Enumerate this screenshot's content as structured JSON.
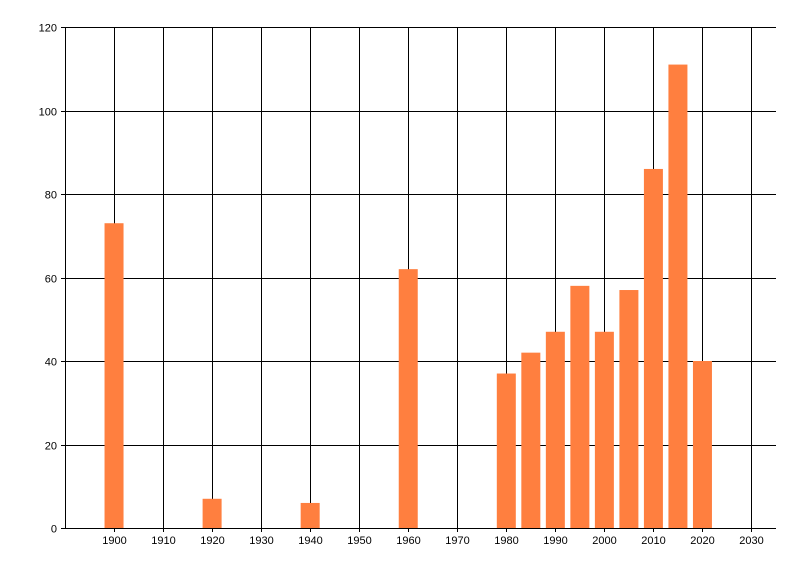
{
  "chart_data": {
    "type": "bar",
    "title": "",
    "xlabel": "",
    "ylabel": "",
    "x": [
      1900,
      1920,
      1940,
      1960,
      1980,
      1985,
      1990,
      1995,
      2000,
      2005,
      2010,
      2015,
      2020
    ],
    "values": [
      73,
      7,
      6,
      62,
      37,
      42,
      47,
      58,
      47,
      57,
      86,
      111,
      40
    ],
    "xlim": [
      1890,
      2035
    ],
    "ylim": [
      0,
      120
    ],
    "x_ticks": [
      1900,
      1910,
      1920,
      1930,
      1940,
      1950,
      1960,
      1970,
      1980,
      1990,
      2000,
      2010,
      2020,
      2030
    ],
    "y_ticks": [
      0,
      20,
      40,
      60,
      80,
      100,
      120
    ],
    "grid": true,
    "legend": "none",
    "colors": {
      "bar": "#ff7f3f",
      "grid": "#000000",
      "axis": "#000000"
    }
  }
}
